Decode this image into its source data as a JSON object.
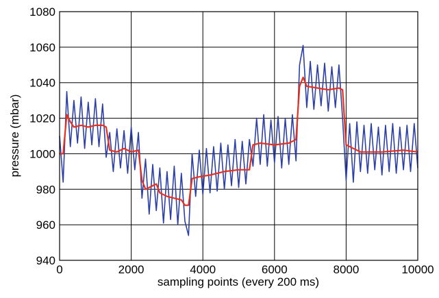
{
  "chart_data": {
    "type": "line",
    "x_label": "sampling points (every 200 ms)",
    "y_label": "pressure (mbar)",
    "xlim": [
      0,
      10000
    ],
    "xticks": [
      0,
      2000,
      4000,
      6000,
      8000,
      10000
    ],
    "ylim": [
      940,
      1080
    ],
    "yticks": [
      940,
      960,
      980,
      1000,
      1020,
      1040,
      1060,
      1080
    ],
    "grid": true,
    "series": [
      {
        "color": "#2b3fa6",
        "x": [
          0,
          100,
          200,
          300,
          400,
          500,
          600,
          700,
          800,
          900,
          1000,
          1100,
          1200,
          1300,
          1400,
          1500,
          1600,
          1700,
          1800,
          1900,
          2000,
          2100,
          2200,
          2300,
          2400,
          2500,
          2600,
          2700,
          2800,
          2900,
          3000,
          3100,
          3200,
          3300,
          3400,
          3500,
          3600,
          3700,
          3800,
          3900,
          4000,
          4100,
          4200,
          4300,
          4400,
          4500,
          4600,
          4700,
          4800,
          4900,
          5000,
          5100,
          5200,
          5300,
          5400,
          5500,
          5600,
          5700,
          5800,
          5900,
          6000,
          6100,
          6200,
          6300,
          6400,
          6500,
          6600,
          6700,
          6800,
          6900,
          7000,
          7100,
          7200,
          7300,
          7400,
          7500,
          7600,
          7700,
          7800,
          7900,
          8000,
          8100,
          8200,
          8300,
          8400,
          8500,
          8600,
          8700,
          8800,
          8900,
          9000,
          9100,
          9200,
          9300,
          9400,
          9500,
          9600,
          9700,
          9800,
          9900,
          10000
        ],
        "values": [
          1010,
          984,
          1035,
          1004,
          1030,
          1006,
          1032,
          1003,
          1029,
          1005,
          1031,
          1004,
          1028,
          998,
          1012,
          990,
          1014,
          992,
          1013,
          989,
          1015,
          991,
          1012,
          975,
          997,
          966,
          994,
          968,
          992,
          961,
          990,
          963,
          993,
          960,
          989,
          962,
          954,
          1000,
          976,
          1002,
          977,
          1003,
          978,
          1004,
          979,
          1006,
          980,
          1005,
          982,
          1008,
          981,
          1007,
          983,
          1008,
          993,
          1020,
          994,
          1022,
          993,
          1019,
          995,
          1021,
          992,
          1020,
          994,
          1022,
          996,
          1050,
          1061,
          1026,
          1052,
          1025,
          1050,
          1027,
          1051,
          1024,
          1049,
          1026,
          1050,
          1020,
          985,
          1017,
          984,
          1018,
          990,
          1016,
          989,
          1017,
          991,
          1015,
          988,
          1016,
          990,
          1017,
          989,
          1015,
          991,
          1016,
          990,
          1017,
          992
        ]
      },
      {
        "color": "#e8301f",
        "x": [
          0,
          100,
          200,
          300,
          400,
          600,
          800,
          1000,
          1200,
          1300,
          1400,
          1600,
          1800,
          2000,
          2200,
          2300,
          2400,
          2600,
          2700,
          2800,
          3000,
          3200,
          3400,
          3500,
          3600,
          3700,
          3900,
          4200,
          4600,
          5000,
          5300,
          5400,
          5600,
          6000,
          6400,
          6600,
          6700,
          6800,
          6900,
          7200,
          7500,
          7800,
          7900,
          8000,
          8200,
          8400,
          9000,
          9600,
          10000
        ],
        "values": [
          1000,
          1000,
          1022,
          1018,
          1015,
          1016,
          1015,
          1016,
          1016,
          1015,
          1002,
          1001,
          1003,
          1001,
          1002,
          985,
          980,
          982,
          983,
          978,
          976,
          975,
          974,
          971,
          971,
          986,
          987,
          988,
          990,
          991,
          991,
          1005,
          1006,
          1005,
          1006,
          1008,
          1038,
          1043,
          1038,
          1037,
          1036,
          1037,
          1036,
          1005,
          1003,
          1001,
          1001,
          1002,
          1001
        ]
      }
    ]
  }
}
